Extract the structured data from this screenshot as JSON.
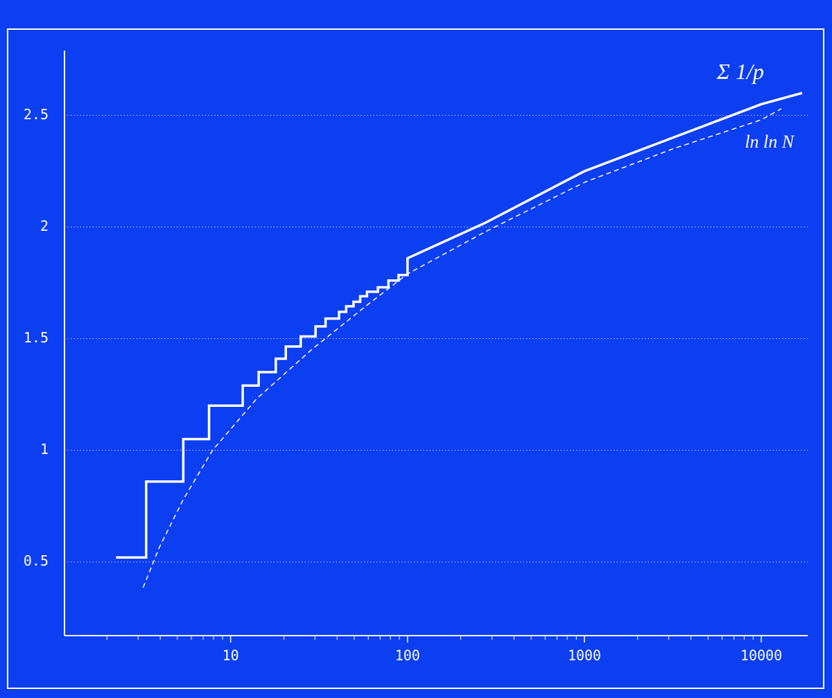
{
  "chart_data": {
    "type": "line",
    "background": "#0c3ef2",
    "color": "#ffffff",
    "xscale": "log",
    "grid": true,
    "xlim": [
      1.15,
      18300
    ],
    "ylim": [
      0.17,
      2.79
    ],
    "xticks": [
      10,
      100,
      1000,
      10000
    ],
    "xminorticks": [
      2,
      3,
      4,
      5,
      6,
      7,
      8,
      9,
      20,
      30,
      40,
      50,
      60,
      70,
      80,
      90,
      200,
      300,
      400,
      500,
      600,
      700,
      800,
      900,
      2000,
      3000,
      4000,
      5000,
      6000,
      7000,
      8000,
      9000
    ],
    "yticks": [
      0.5,
      1.0,
      1.5,
      2.0,
      2.5
    ],
    "series": [
      {
        "name": "Σ 1/p",
        "color": "#ffffff",
        "style": "step",
        "step_until": 100,
        "x": [
          2.25,
          3.33,
          5.4,
          7.55,
          11.7,
          14.4,
          18,
          20.5,
          24.9,
          30.2,
          34.4,
          41,
          45,
          49.5,
          54,
          59,
          68,
          78,
          89,
          100,
          277,
          1000,
          3162,
          10000,
          17000
        ],
        "values": [
          0.52,
          0.86,
          1.05,
          1.2,
          1.29,
          1.35,
          1.41,
          1.465,
          1.51,
          1.555,
          1.59,
          1.62,
          1.645,
          1.665,
          1.69,
          1.71,
          1.73,
          1.76,
          1.785,
          1.86,
          2.02,
          2.25,
          2.4,
          2.55,
          2.6
        ]
      },
      {
        "name": "ln ln N",
        "color": "#ffffff",
        "style": "dashed",
        "x": [
          3.2,
          3.95,
          5.4,
          7.9,
          14,
          28.6,
          59,
          100,
          277,
          1000,
          3162,
          10000,
          13000
        ],
        "values": [
          0.385,
          0.565,
          0.78,
          1.0,
          1.23,
          1.45,
          1.65,
          1.79,
          1.98,
          2.2,
          2.35,
          2.48,
          2.53
        ]
      }
    ]
  }
}
